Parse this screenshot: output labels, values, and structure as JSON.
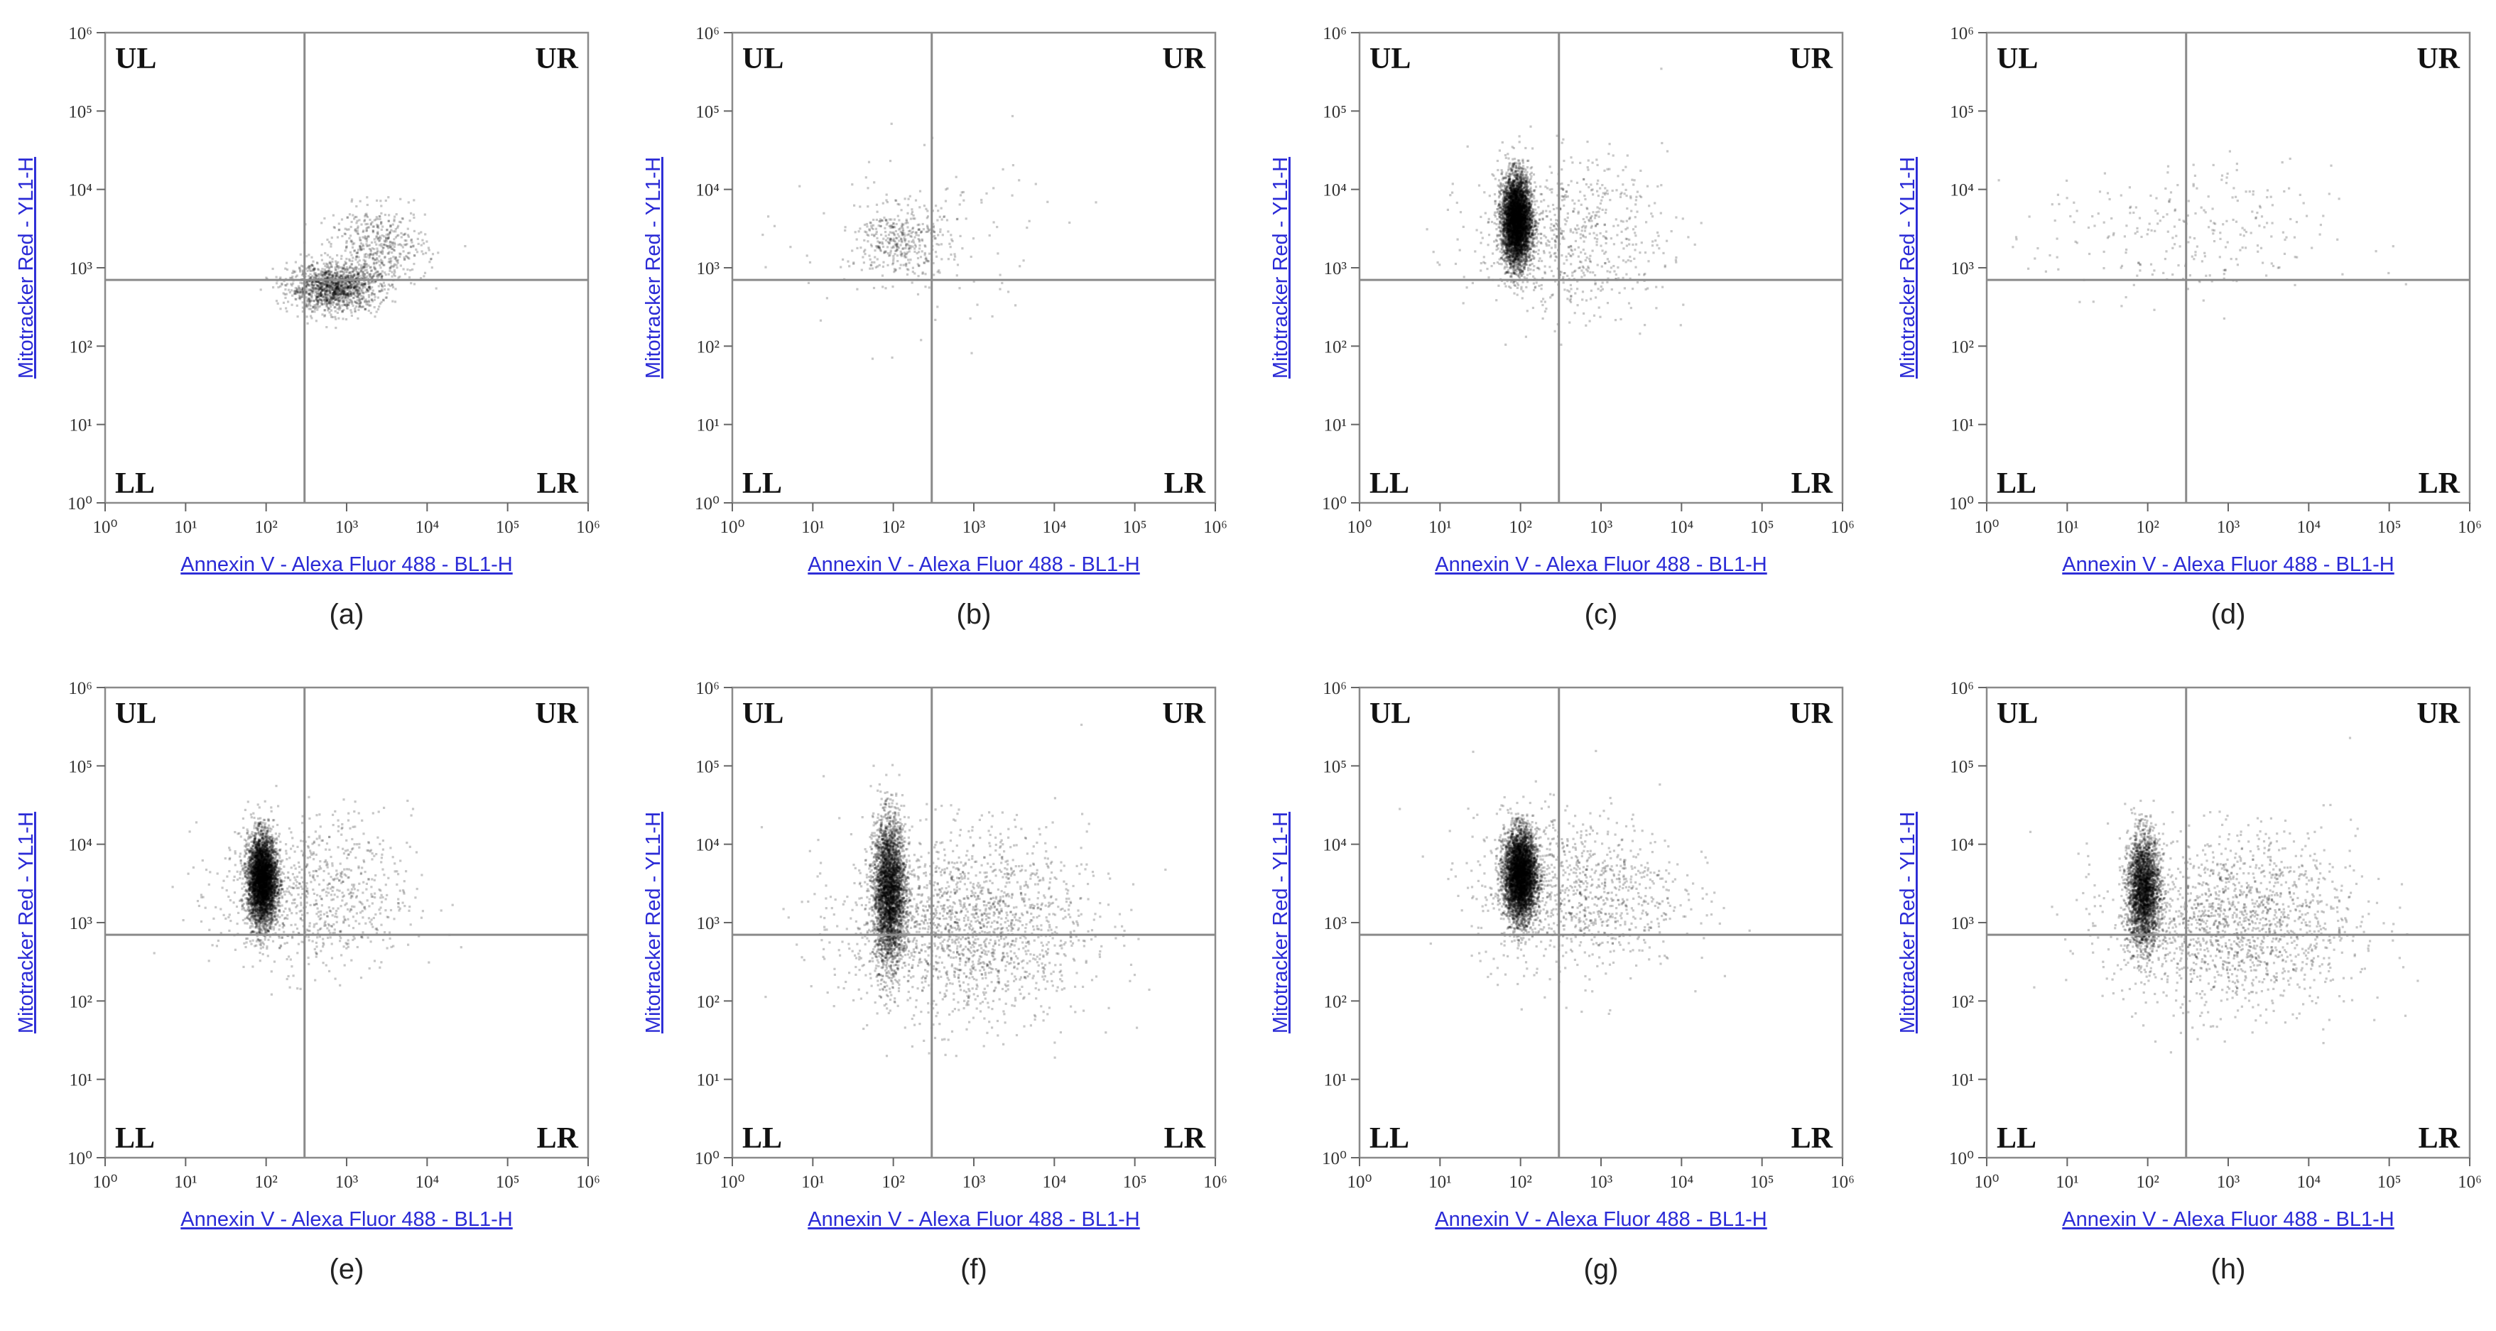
{
  "figure": {
    "x_axis_title": "Annexin V - Alexa Fluor 488 - BL1-H",
    "y_axis_title": "Mitotracker Red - YL1-H",
    "quadrant_labels": {
      "ul": "UL",
      "ur": "UR",
      "ll": "LL",
      "lr": "LR"
    }
  },
  "chart_data": [
    {
      "type": "scatter",
      "caption": "(a)",
      "xlabel": "Annexin V - Alexa Fluor 488 - BL1-H",
      "ylabel": "Mitotracker Red - YL1-H",
      "xscale": "log",
      "yscale": "log",
      "xlim": [
        1,
        1000000
      ],
      "ylim": [
        1,
        1000000
      ],
      "x_tick_labels": [
        "10⁰",
        "10¹",
        "10²",
        "10³",
        "10⁴",
        "10⁵",
        "10⁶"
      ],
      "y_tick_labels": [
        "10⁰",
        "10¹",
        "10²",
        "10³",
        "10⁴",
        "10⁵",
        "10⁶"
      ],
      "quadrant_gate": {
        "x": 300,
        "y": 700
      },
      "quadrant_labels": [
        "UL",
        "UR",
        "LL",
        "LR"
      ],
      "populations": [
        {
          "center_x": 700,
          "center_y": 550,
          "spread_x_decades": 0.28,
          "spread_y_decades": 0.15,
          "count": 1400
        },
        {
          "center_x": 2500,
          "center_y": 1800,
          "spread_x_decades": 0.3,
          "spread_y_decades": 0.25,
          "count": 500
        }
      ]
    },
    {
      "type": "scatter",
      "caption": "(b)",
      "xlabel": "Annexin V - Alexa Fluor 488 - BL1-H",
      "ylabel": "Mitotracker Red - YL1-H",
      "xscale": "log",
      "yscale": "log",
      "xlim": [
        1,
        1000000
      ],
      "ylim": [
        1,
        1000000
      ],
      "x_tick_labels": [
        "10⁰",
        "10¹",
        "10²",
        "10³",
        "10⁴",
        "10⁵",
        "10⁶"
      ],
      "y_tick_labels": [
        "10⁰",
        "10¹",
        "10²",
        "10³",
        "10⁴",
        "10⁵",
        "10⁶"
      ],
      "quadrant_gate": {
        "x": 300,
        "y": 700
      },
      "quadrant_labels": [
        "UL",
        "UR",
        "LL",
        "LR"
      ],
      "populations": [
        {
          "center_x": 120,
          "center_y": 2300,
          "spread_x_decades": 0.25,
          "spread_y_decades": 0.22,
          "count": 350
        },
        {
          "center_x": 200,
          "center_y": 2000,
          "spread_x_decades": 0.8,
          "spread_y_decades": 0.6,
          "count": 150
        }
      ]
    },
    {
      "type": "scatter",
      "caption": "(c)",
      "xlabel": "Annexin V - Alexa Fluor 488 - BL1-H",
      "ylabel": "Mitotracker Red - YL1-H",
      "xscale": "log",
      "yscale": "log",
      "xlim": [
        1,
        1000000
      ],
      "ylim": [
        1,
        1000000
      ],
      "x_tick_labels": [
        "10⁰",
        "10¹",
        "10²",
        "10³",
        "10⁴",
        "10⁵",
        "10⁶"
      ],
      "y_tick_labels": [
        "10⁰",
        "10¹",
        "10²",
        "10³",
        "10⁴",
        "10⁵",
        "10⁶"
      ],
      "quadrant_gate": {
        "x": 300,
        "y": 700
      },
      "quadrant_labels": [
        "UL",
        "UR",
        "LL",
        "LR"
      ],
      "populations": [
        {
          "center_x": 90,
          "center_y": 4000,
          "spread_x_decades": 0.09,
          "spread_y_decades": 0.28,
          "count": 5200
        },
        {
          "center_x": 400,
          "center_y": 2500,
          "spread_x_decades": 0.6,
          "spread_y_decades": 0.5,
          "count": 700
        }
      ]
    },
    {
      "type": "scatter",
      "caption": "(d)",
      "xlabel": "Annexin V - Alexa Fluor 488 - BL1-H",
      "ylabel": "Mitotracker Red - YL1-H",
      "xscale": "log",
      "yscale": "log",
      "xlim": [
        1,
        1000000
      ],
      "ylim": [
        1,
        1000000
      ],
      "x_tick_labels": [
        "10⁰",
        "10¹",
        "10²",
        "10³",
        "10⁴",
        "10⁵",
        "10⁶"
      ],
      "y_tick_labels": [
        "10⁰",
        "10¹",
        "10²",
        "10³",
        "10⁴",
        "10⁵",
        "10⁶"
      ],
      "quadrant_gate": {
        "x": 300,
        "y": 700
      },
      "quadrant_labels": [
        "UL",
        "UR",
        "LL",
        "LR"
      ],
      "populations": [
        {
          "center_x": 300,
          "center_y": 2500,
          "spread_x_decades": 0.9,
          "spread_y_decades": 0.45,
          "count": 260
        }
      ]
    },
    {
      "type": "scatter",
      "caption": "(e)",
      "xlabel": "Annexin V - Alexa Fluor 488 - BL1-H",
      "ylabel": "Mitotracker Red - YL1-H",
      "xscale": "log",
      "yscale": "log",
      "xlim": [
        1,
        1000000
      ],
      "ylim": [
        1,
        1000000
      ],
      "x_tick_labels": [
        "10⁰",
        "10¹",
        "10²",
        "10³",
        "10⁴",
        "10⁵",
        "10⁶"
      ],
      "y_tick_labels": [
        "10⁰",
        "10¹",
        "10²",
        "10³",
        "10⁴",
        "10⁵",
        "10⁶"
      ],
      "quadrant_gate": {
        "x": 300,
        "y": 700
      },
      "quadrant_labels": [
        "UL",
        "UR",
        "LL",
        "LR"
      ],
      "populations": [
        {
          "center_x": 90,
          "center_y": 3500,
          "spread_x_decades": 0.09,
          "spread_y_decades": 0.28,
          "count": 4600
        },
        {
          "center_x": 400,
          "center_y": 2300,
          "spread_x_decades": 0.6,
          "spread_y_decades": 0.5,
          "count": 800
        }
      ]
    },
    {
      "type": "scatter",
      "caption": "(f)",
      "xlabel": "Annexin V - Alexa Fluor 488 - BL1-H",
      "ylabel": "Mitotracker Red - YL1-H",
      "xscale": "log",
      "yscale": "log",
      "xlim": [
        1,
        1000000
      ],
      "ylim": [
        1,
        1000000
      ],
      "x_tick_labels": [
        "10⁰",
        "10¹",
        "10²",
        "10³",
        "10⁴",
        "10⁵",
        "10⁶"
      ],
      "y_tick_labels": [
        "10⁰",
        "10¹",
        "10²",
        "10³",
        "10⁴",
        "10⁵",
        "10⁶"
      ],
      "quadrant_gate": {
        "x": 300,
        "y": 700
      },
      "quadrant_labels": [
        "UL",
        "UR",
        "LL",
        "LR"
      ],
      "populations": [
        {
          "center_x": 90,
          "center_y": 2500,
          "spread_x_decades": 0.1,
          "spread_y_decades": 0.45,
          "count": 3600
        },
        {
          "center_x": 800,
          "center_y": 900,
          "spread_x_decades": 0.75,
          "spread_y_decades": 0.6,
          "count": 1800
        }
      ]
    },
    {
      "type": "scatter",
      "caption": "(g)",
      "xlabel": "Annexin V - Alexa Fluor 488 - BL1-H",
      "ylabel": "Mitotracker Red - YL1-H",
      "xscale": "log",
      "yscale": "log",
      "xlim": [
        1,
        1000000
      ],
      "ylim": [
        1,
        1000000
      ],
      "x_tick_labels": [
        "10⁰",
        "10¹",
        "10²",
        "10³",
        "10⁴",
        "10⁵",
        "10⁶"
      ],
      "y_tick_labels": [
        "10⁰",
        "10¹",
        "10²",
        "10³",
        "10⁴",
        "10⁵",
        "10⁶"
      ],
      "quadrant_gate": {
        "x": 300,
        "y": 700
      },
      "quadrant_labels": [
        "UL",
        "UR",
        "LL",
        "LR"
      ],
      "populations": [
        {
          "center_x": 100,
          "center_y": 4000,
          "spread_x_decades": 0.1,
          "spread_y_decades": 0.28,
          "count": 5000
        },
        {
          "center_x": 500,
          "center_y": 2500,
          "spread_x_decades": 0.65,
          "spread_y_decades": 0.5,
          "count": 1000
        }
      ]
    },
    {
      "type": "scatter",
      "caption": "(h)",
      "xlabel": "Annexin V - Alexa Fluor 488 - BL1-H",
      "ylabel": "Mitotracker Red - YL1-H",
      "xscale": "log",
      "yscale": "log",
      "xlim": [
        1,
        1000000
      ],
      "ylim": [
        1,
        1000000
      ],
      "x_tick_labels": [
        "10⁰",
        "10¹",
        "10²",
        "10³",
        "10⁴",
        "10⁵",
        "10⁶"
      ],
      "y_tick_labels": [
        "10⁰",
        "10¹",
        "10²",
        "10³",
        "10⁴",
        "10⁵",
        "10⁶"
      ],
      "quadrant_gate": {
        "x": 300,
        "y": 700
      },
      "quadrant_labels": [
        "UL",
        "UR",
        "LL",
        "LR"
      ],
      "populations": [
        {
          "center_x": 90,
          "center_y": 2500,
          "spread_x_decades": 0.1,
          "spread_y_decades": 0.35,
          "count": 3000
        },
        {
          "center_x": 1200,
          "center_y": 1000,
          "spread_x_decades": 0.75,
          "spread_y_decades": 0.55,
          "count": 1600
        }
      ]
    }
  ]
}
